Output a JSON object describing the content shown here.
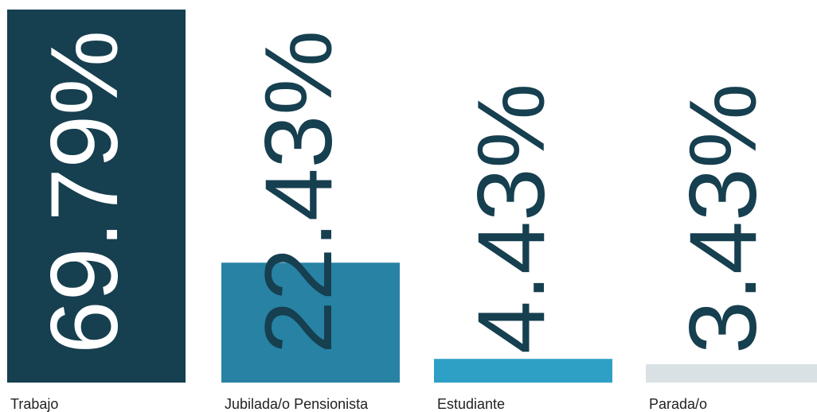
{
  "chart_data": {
    "type": "bar",
    "categories": [
      "Trabajo",
      "Jubilada/o Pensionista",
      "Estudiante",
      "Parada/o"
    ],
    "values": [
      69.79,
      22.43,
      4.43,
      3.43
    ],
    "value_labels": [
      "69.79%",
      "22.43%",
      "4.43%",
      "3.43%"
    ],
    "colors": [
      "#163f4f",
      "#2782a4",
      "#2e9fc5",
      "#d9e1e4"
    ],
    "value_label_colors": [
      "#ffffff",
      "#163f4f",
      "#163f4f",
      "#163f4f"
    ]
  }
}
